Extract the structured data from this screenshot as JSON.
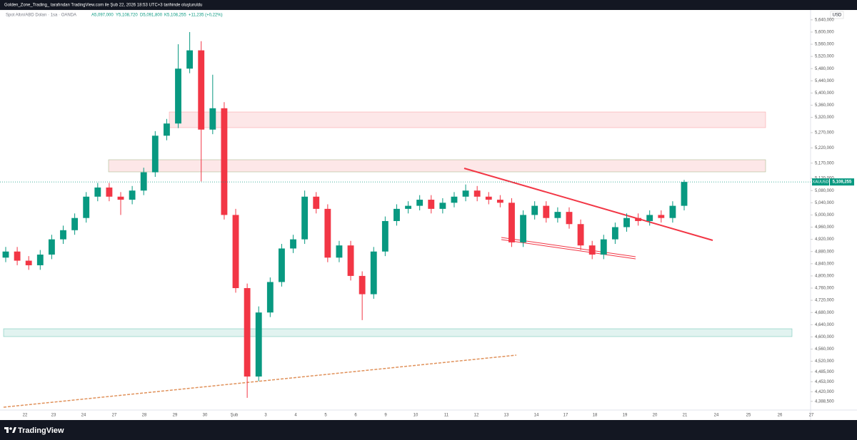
{
  "header": {
    "credit": "Golden_Zone_Trading_ tarafından TradingView.com ile Şub 22, 2026 18:53 UTC+3 tarihinde oluşturuldu",
    "currency": "USD",
    "brand": "TradingView"
  },
  "chart_data": {
    "type": "candlestick",
    "title": "Spot Altın/ABD Doları · 1sa · OANDA",
    "ohlc_legend": [
      "A5,097,000",
      "Y5,108,720",
      "D5,091,800",
      "K5,108,255",
      "+11,235 (+0,22%)"
    ],
    "symbol": "XAUUSD",
    "last_price": {
      "value": 5108.255,
      "label": "5,108,255"
    },
    "up_color": "#089981",
    "down_color": "#f23645",
    "x_labels": [
      "22",
      "23",
      "24",
      "27",
      "28",
      "29",
      "30",
      "Şub",
      "3",
      "4",
      "5",
      "6",
      "9",
      "10",
      "11",
      "12",
      "13",
      "14",
      "17",
      "18",
      "19",
      "20",
      "21",
      "24",
      "25",
      "26",
      "27"
    ],
    "open": [
      4860,
      4880,
      4850,
      4835,
      4870,
      4920,
      4950,
      4990,
      5060,
      5090,
      5060,
      5050,
      5080,
      5140,
      5260,
      5300,
      5480,
      5540,
      5280,
      5350,
      5000,
      4760,
      4470,
      4680,
      4780,
      4890,
      4920,
      5060,
      5020,
      4860,
      4900,
      4800,
      4740,
      4880,
      4980,
      5020,
      5030,
      5050,
      5020,
      5040,
      5060,
      5080,
      5060,
      5050,
      5040,
      4910,
      5000,
      5030,
      4990,
      5010,
      4970,
      4900,
      4870,
      4920,
      4960,
      4990,
      4980,
      5000,
      4990,
      5030
    ],
    "high": [
      4895,
      4895,
      4865,
      4885,
      4935,
      4965,
      5005,
      5075,
      5105,
      5105,
      5075,
      5095,
      5155,
      5275,
      5315,
      5560,
      5600,
      5570,
      5460,
      5370,
      5020,
      4775,
      4700,
      4795,
      4905,
      4935,
      5080,
      5075,
      5035,
      4915,
      4915,
      4815,
      4895,
      4995,
      5035,
      5045,
      5065,
      5065,
      5055,
      5075,
      5100,
      5095,
      5075,
      5065,
      5055,
      5015,
      5045,
      5045,
      5025,
      5025,
      4985,
      4915,
      4935,
      4975,
      5005,
      5005,
      5015,
      5015,
      5045,
      5115
    ],
    "low": [
      4845,
      4835,
      4820,
      4820,
      4855,
      4905,
      4935,
      4975,
      5045,
      5045,
      5000,
      5035,
      5065,
      5125,
      5245,
      5285,
      5465,
      5110,
      5265,
      4985,
      4745,
      4400,
      4455,
      4665,
      4765,
      4875,
      4905,
      5005,
      4845,
      4845,
      4785,
      4655,
      4725,
      4865,
      4965,
      5005,
      5015,
      5005,
      5005,
      5025,
      5045,
      5045,
      5035,
      5025,
      4895,
      4895,
      4985,
      4975,
      4975,
      4955,
      4885,
      4855,
      4855,
      4905,
      4945,
      4965,
      4965,
      4975,
      4975,
      5015
    ],
    "close": [
      4880,
      4850,
      4835,
      4870,
      4920,
      4950,
      4990,
      5060,
      5090,
      5060,
      5050,
      5080,
      5140,
      5260,
      5300,
      5480,
      5540,
      5280,
      5350,
      5000,
      4760,
      4470,
      4680,
      4780,
      4890,
      4920,
      5060,
      5020,
      4860,
      4900,
      4800,
      4740,
      4880,
      4980,
      5020,
      5030,
      5050,
      5020,
      5040,
      5060,
      5080,
      5060,
      5050,
      5040,
      4910,
      5000,
      5030,
      4990,
      5010,
      4970,
      4900,
      4870,
      4920,
      4960,
      4990,
      4980,
      5000,
      4990,
      5030,
      5108.255
    ],
    "ylim": [
      4360,
      5649
    ],
    "yticks": [
      {
        "value": 5640,
        "label": "5,640,000"
      },
      {
        "value": 5600,
        "label": "5,600,000"
      },
      {
        "value": 5560,
        "label": "5,560,000"
      },
      {
        "value": 5520,
        "label": "5,520,000"
      },
      {
        "value": 5480,
        "label": "5,480,000"
      },
      {
        "value": 5440,
        "label": "5,440,000"
      },
      {
        "value": 5400,
        "label": "5,400,000"
      },
      {
        "value": 5360,
        "label": "5,360,000"
      },
      {
        "value": 5320,
        "label": "5,320,000"
      },
      {
        "value": 5270,
        "label": "5,270,000"
      },
      {
        "value": 5220,
        "label": "5,220,000"
      },
      {
        "value": 5170,
        "label": "5,170,000"
      },
      {
        "value": 5120,
        "label": "5,120,000"
      },
      {
        "value": 5080,
        "label": "5,080,000"
      },
      {
        "value": 5040,
        "label": "5,040,000"
      },
      {
        "value": 5000,
        "label": "5,000,000"
      },
      {
        "value": 4960,
        "label": "4,960,000"
      },
      {
        "value": 4920,
        "label": "4,920,000"
      },
      {
        "value": 4880,
        "label": "4,880,000"
      },
      {
        "value": 4840,
        "label": "4,840,000"
      },
      {
        "value": 4800,
        "label": "4,800,000"
      },
      {
        "value": 4760,
        "label": "4,760,000"
      },
      {
        "value": 4720,
        "label": "4,720,000"
      },
      {
        "value": 4680,
        "label": "4,680,000"
      },
      {
        "value": 4640,
        "label": "4,640,000"
      },
      {
        "value": 4600,
        "label": "4,600,000"
      },
      {
        "value": 4560,
        "label": "4,560,000"
      },
      {
        "value": 4520,
        "label": "4,520,000"
      },
      {
        "value": 4485,
        "label": "4,485,000"
      },
      {
        "value": 4453,
        "label": "4,453,000"
      },
      {
        "value": 4420,
        "label": "4,420,000"
      },
      {
        "value": 4388.5,
        "label": "4,388,500"
      }
    ]
  }
}
